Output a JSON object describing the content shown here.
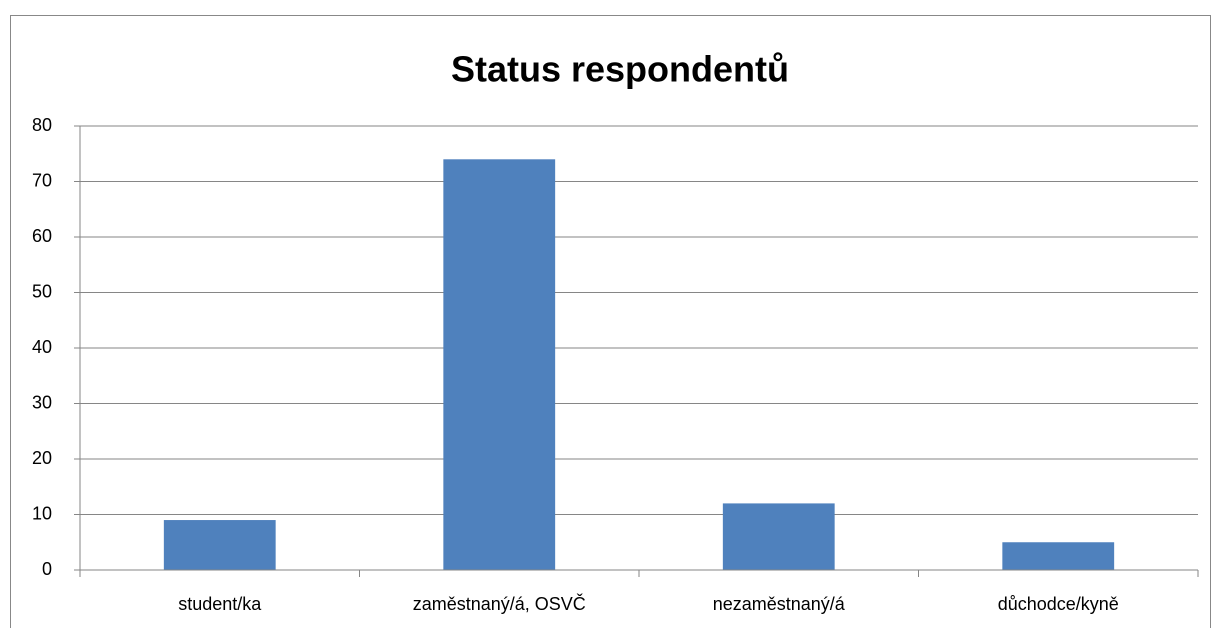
{
  "chart_data": {
    "type": "bar",
    "title": "Status respondentů",
    "categories": [
      "student/ka",
      "zaměstnaný/á, OSVČ",
      "nezaměstnaný/á",
      "důchodce/kyně"
    ],
    "values": [
      9,
      74,
      12,
      5
    ],
    "color": "#4f81bd",
    "ylim": [
      0,
      80
    ],
    "yticks": [
      0,
      10,
      20,
      30,
      40,
      50,
      60,
      70,
      80
    ],
    "grid": true
  }
}
